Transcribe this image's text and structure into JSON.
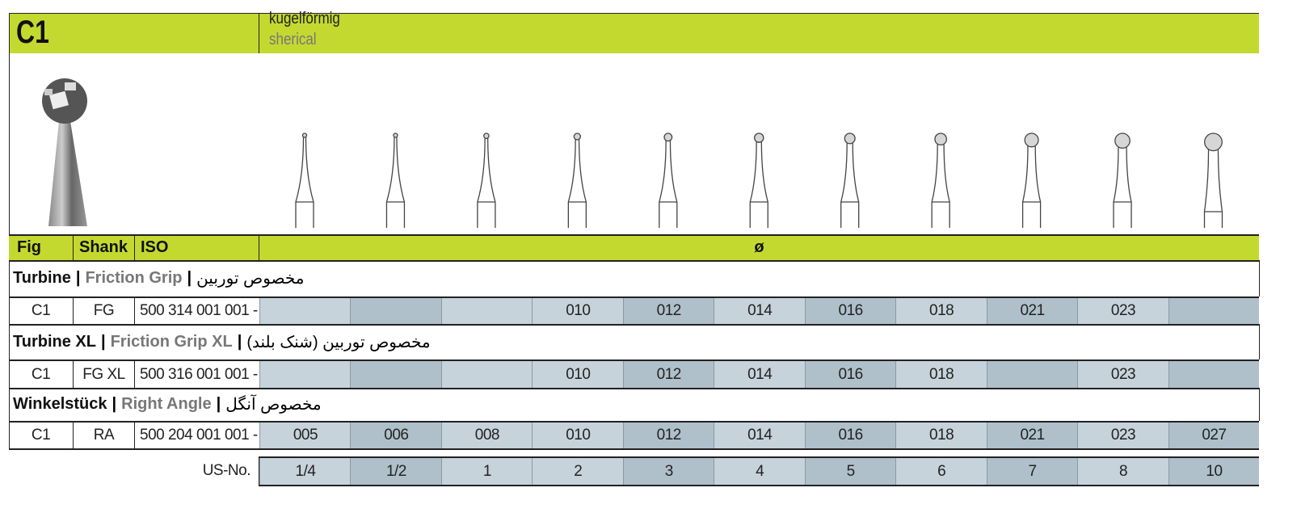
{
  "header": {
    "code": "C1",
    "name_de": "kugelförmig",
    "name_en": "sherical"
  },
  "colors": {
    "header_green": "#c4d930",
    "cell_light": "#c6d3db",
    "cell_dark": "#afc0ca"
  },
  "table_header": {
    "fig": "Fig",
    "shank": "Shank",
    "iso": "ISO",
    "diameter": "ø"
  },
  "bur_sizes": [
    "005",
    "006",
    "008",
    "010",
    "012",
    "014",
    "016",
    "018",
    "021",
    "023",
    "027"
  ],
  "sections": [
    {
      "title_de": "Turbine",
      "title_en": "Friction Grip",
      "title_fa": "مخصوص توربین",
      "row": {
        "fig": "C1",
        "shank": "FG",
        "iso": "500 314 001 001 -",
        "sizes": [
          "",
          "",
          "",
          "010",
          "012",
          "014",
          "016",
          "018",
          "021",
          "023",
          ""
        ]
      }
    },
    {
      "title_de": "Turbine XL",
      "title_en": "Friction Grip XL",
      "title_fa": "مخصوص توربین (شنک بلند)",
      "row": {
        "fig": "C1",
        "shank": "FG XL",
        "iso": "500 316 001 001 -",
        "sizes": [
          "",
          "",
          "",
          "010",
          "012",
          "014",
          "016",
          "018",
          "",
          "023",
          ""
        ]
      }
    },
    {
      "title_de": "Winkelstück",
      "title_en": "Right Angle",
      "title_fa": "مخصوص آنگل",
      "row": {
        "fig": "C1",
        "shank": "RA",
        "iso": "500 204 001 001 -",
        "sizes": [
          "005",
          "006",
          "008",
          "010",
          "012",
          "014",
          "016",
          "018",
          "021",
          "023",
          "027"
        ]
      }
    }
  ],
  "us_no": {
    "label": "US-No.",
    "values": [
      "1/4",
      "1/2",
      "1",
      "2",
      "3",
      "4",
      "5",
      "6",
      "7",
      "8",
      "10"
    ]
  }
}
